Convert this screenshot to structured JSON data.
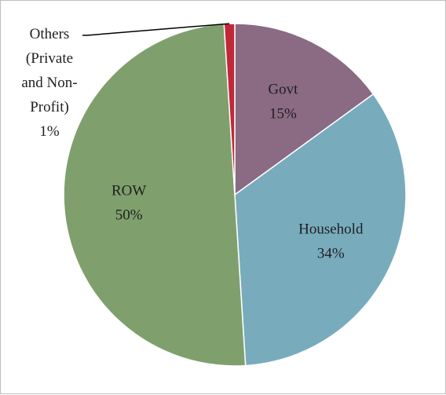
{
  "chart_data": {
    "type": "pie",
    "slices": [
      {
        "label": "Govt",
        "value": 15,
        "display": "15%",
        "color": "#8b6a84"
      },
      {
        "label": "Household",
        "value": 34,
        "display": "34%",
        "color": "#78acbd"
      },
      {
        "label": "ROW",
        "value": 50,
        "display": "50%",
        "color": "#7fa06d"
      },
      {
        "label": "Others (Private and Non-Profit)",
        "value": 1,
        "display": "1%",
        "color": "#c0283a"
      }
    ],
    "others_label_lines": [
      "Others",
      "(Private",
      "and Non-",
      "Profit)",
      "1%"
    ],
    "legend": "none"
  }
}
